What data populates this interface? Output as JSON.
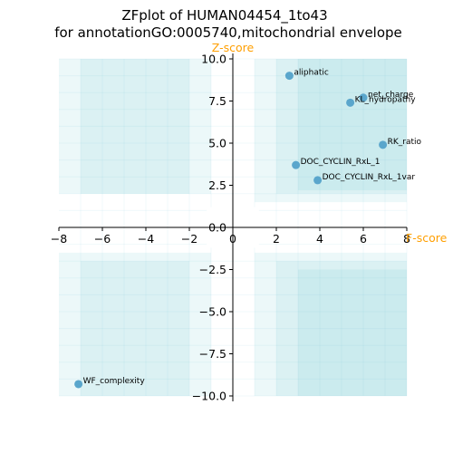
{
  "chart_data": {
    "type": "scatter",
    "title": "ZFplot of HUMAN04454_1to43",
    "subtitle": "for annotationGO:0005740,mitochondrial envelope",
    "xlabel": "F-score",
    "ylabel": "Z-score",
    "xlim": [
      -8,
      8
    ],
    "ylim": [
      -10,
      10
    ],
    "xticks": [
      -8,
      -6,
      -4,
      -2,
      0,
      2,
      4,
      6,
      8
    ],
    "yticks": [
      -10.0,
      -7.5,
      -5.0,
      -2.5,
      0.0,
      2.5,
      5.0,
      7.5,
      10.0
    ],
    "xtick_labels": [
      "−8",
      "−6",
      "−4",
      "−2",
      "0",
      "2",
      "4",
      "6",
      "8"
    ],
    "ytick_labels": [
      "−10.0",
      "−7.5",
      "−5.0",
      "−2.5",
      "0.0",
      "2.5",
      "5.0",
      "7.5",
      "10.0"
    ],
    "points": [
      {
        "label": "aliphatic",
        "x": 2.6,
        "y": 9.0
      },
      {
        "label": "net_charge",
        "x": 6.0,
        "y": 7.7
      },
      {
        "label": "KL_hydropathy",
        "x": 5.4,
        "y": 7.4
      },
      {
        "label": "RK_ratio",
        "x": 6.9,
        "y": 4.9
      },
      {
        "label": "DOC_CYCLIN_RxL_1",
        "x": 2.9,
        "y": 3.7
      },
      {
        "label": "DOC_CYCLIN_RxL_1var",
        "x": 3.9,
        "y": 2.8
      },
      {
        "label": "WF_complexity",
        "x": -7.1,
        "y": -9.3
      }
    ],
    "colors": {
      "point": "#5aa6cc",
      "axis_label": "#ff9f00",
      "shading": "#47b8c6"
    }
  }
}
